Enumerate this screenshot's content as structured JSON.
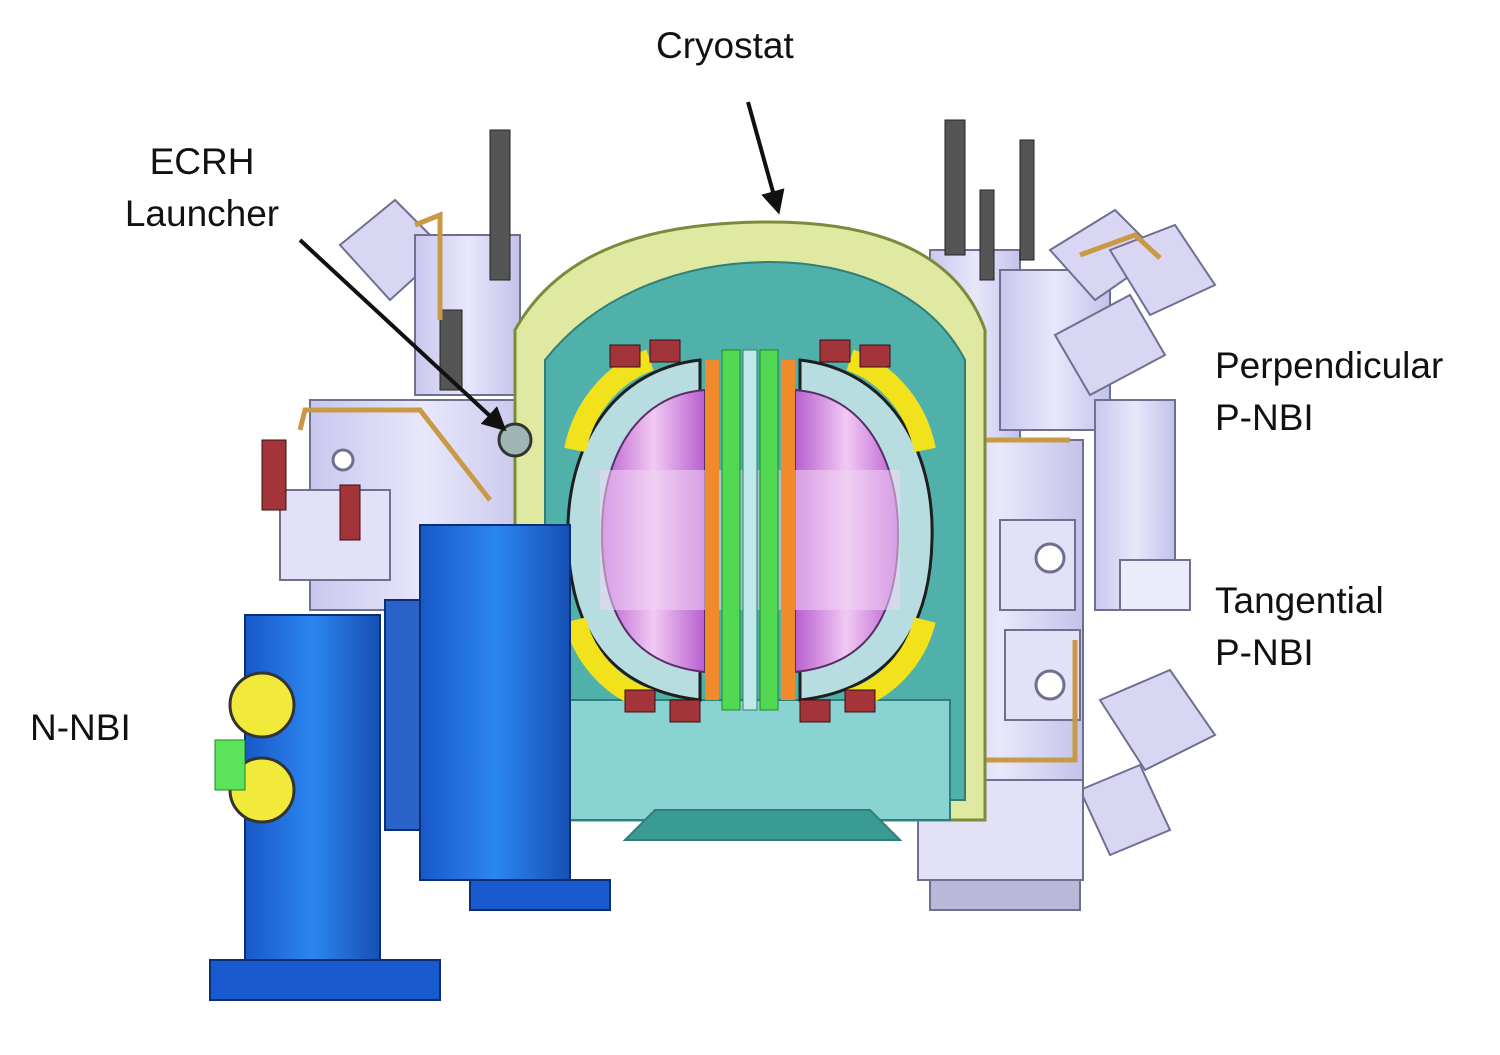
{
  "labels": {
    "cryostat": "Cryostat",
    "ecrh_line1": "ECRH",
    "ecrh_line2": "Launcher",
    "perp_line1": "Perpendicular",
    "perp_line2": "P-NBI",
    "tang_line1": "Tangential",
    "tang_line2": "P-NBI",
    "nnbi": "N-NBI"
  },
  "colors": {
    "cryostat_shell": "#dfe9a2",
    "vessel_interior": "#4fb1a9",
    "plasma": "#d88ce0",
    "n_nbi_body": "#1f6fe0",
    "p_nbi_body": "#dcdcf4",
    "central_solenoid": "#52d852",
    "coil_case": "#f2e21b",
    "orange_coil": "#f08a2a",
    "arrow": "#111111"
  }
}
